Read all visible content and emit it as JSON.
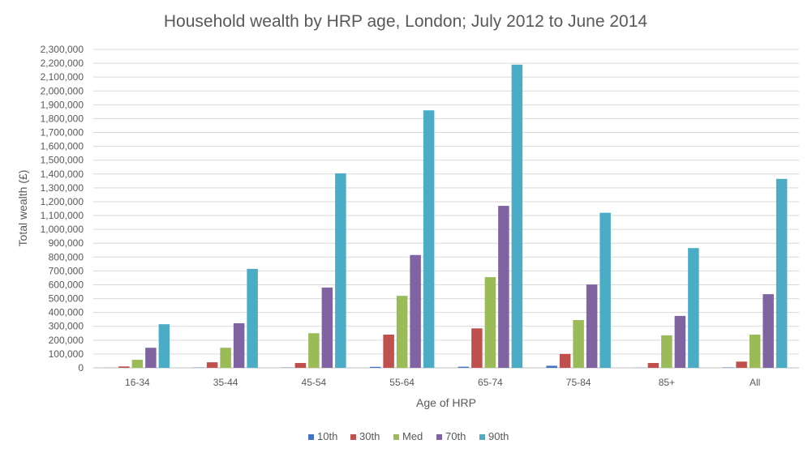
{
  "chart_data": {
    "type": "bar",
    "title": "Household wealth by HRP age, London; July 2012 to June 2014",
    "xlabel": "Age of HRP",
    "ylabel": "Total wealth (£)",
    "ylim": [
      0,
      2300000
    ],
    "ytick_step": 100000,
    "ytick_labels": [
      "0",
      "100,000",
      "200,000",
      "300,000",
      "400,000",
      "500,000",
      "600,000",
      "700,000",
      "800,000",
      "900,000",
      "1,000,000",
      "1,100,000",
      "1,200,000",
      "1,300,000",
      "1,400,000",
      "1,500,000",
      "1,600,000",
      "1,700,000",
      "1,800,000",
      "1,900,000",
      "2,000,000",
      "2,100,000",
      "2,200,000",
      "2,300,000"
    ],
    "grid": true,
    "legend_position": "bottom",
    "categories": [
      "16-34",
      "35-44",
      "45-54",
      "55-64",
      "65-74",
      "75-84",
      "85+",
      "All"
    ],
    "series": [
      {
        "name": "10th",
        "color": "#4472C4",
        "values": [
          1000,
          2000,
          2000,
          7000,
          8000,
          15000,
          1000,
          3000
        ]
      },
      {
        "name": "30th",
        "color": "#C0504D",
        "values": [
          10000,
          40000,
          35000,
          240000,
          285000,
          100000,
          35000,
          45000
        ]
      },
      {
        "name": "Med",
        "color": "#9BBB59",
        "values": [
          58000,
          145000,
          250000,
          520000,
          655000,
          345000,
          235000,
          240000
        ]
      },
      {
        "name": "70th",
        "color": "#8064A2",
        "values": [
          145000,
          322000,
          580000,
          815000,
          1170000,
          602000,
          375000,
          532000
        ]
      },
      {
        "name": "90th",
        "color": "#4BACC6",
        "values": [
          315000,
          715000,
          1405000,
          1860000,
          2190000,
          1120000,
          865000,
          1365000
        ]
      }
    ]
  }
}
